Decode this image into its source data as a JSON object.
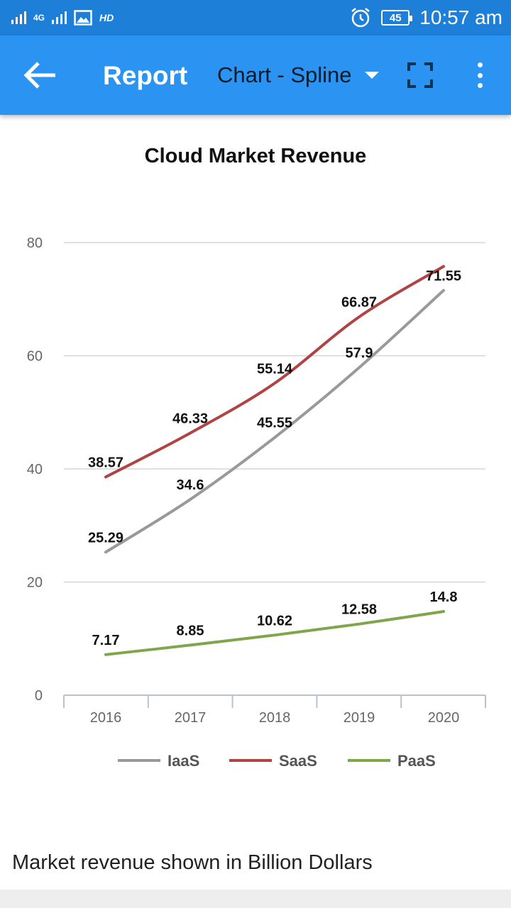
{
  "status_bar": {
    "network": "4G",
    "hd_label": "HD",
    "battery": "45",
    "time": "10:57 am"
  },
  "app_bar": {
    "title": "Report",
    "chart_type_selected": "Chart - Spline"
  },
  "colors": {
    "status_bar": "#1e7fd8",
    "app_bar": "#2b94f2"
  },
  "chart_data": {
    "type": "line",
    "title": "Cloud Market Revenue",
    "categories": [
      "2016",
      "2017",
      "2018",
      "2019",
      "2020"
    ],
    "ylim": [
      0,
      80
    ],
    "yticks": [
      "0",
      "20",
      "40",
      "60",
      "80"
    ],
    "grid": true,
    "legend_position": "bottom",
    "series": [
      {
        "name": "IaaS",
        "color": "#999999",
        "values": [
          25.29,
          34.6,
          45.55,
          57.9,
          71.55
        ],
        "labels": [
          "25.29",
          "34.6",
          "45.55",
          "57.9",
          "71.55"
        ]
      },
      {
        "name": "SaaS",
        "color": "#b04444",
        "values": [
          38.57,
          46.33,
          55.14,
          66.87,
          75.8
        ],
        "labels": [
          "38.57",
          "46.33",
          "55.14",
          "66.87",
          ""
        ]
      },
      {
        "name": "PaaS",
        "color": "#7fa64a",
        "values": [
          7.17,
          8.85,
          10.62,
          12.58,
          14.8
        ],
        "labels": [
          "7.17",
          "8.85",
          "10.62",
          "12.58",
          "14.8"
        ]
      }
    ]
  },
  "footer": {
    "note": "Market revenue shown in Billion Dollars"
  }
}
